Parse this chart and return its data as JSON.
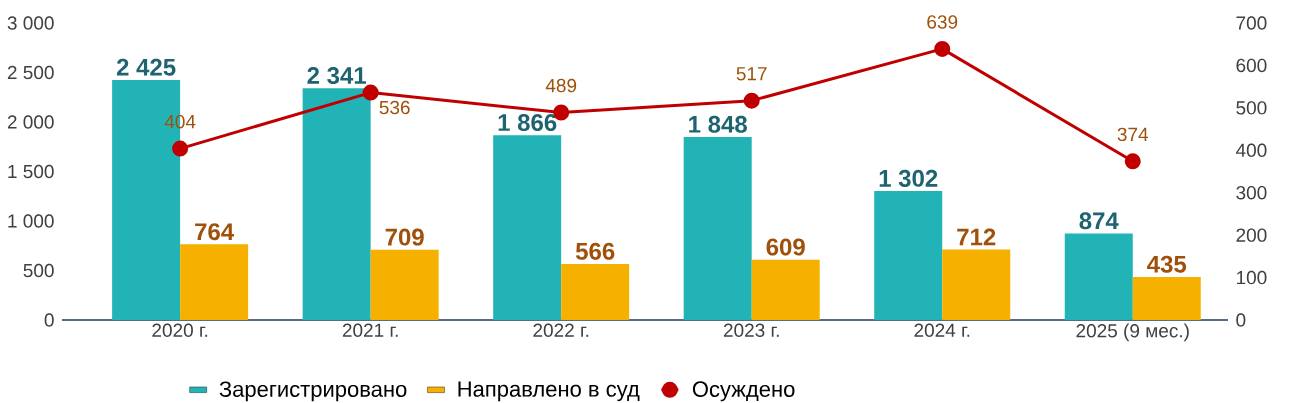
{
  "chart_data": {
    "type": "bar",
    "categories": [
      "2020 г.",
      "2021 г.",
      "2022 г.",
      "2023 г.",
      "2024 г.",
      "2025 (9 мес.)"
    ],
    "series": [
      {
        "name": "Зарегистрировано",
        "color": "#22b3b6",
        "values": [
          2425,
          2341,
          1866,
          1848,
          1302,
          874
        ],
        "value_labels": [
          "2 425",
          "2 341",
          "1 866",
          "1 848",
          "1 302",
          "874"
        ]
      },
      {
        "name": "Направлено в суд",
        "color": "#f6b000",
        "values": [
          764,
          709,
          566,
          609,
          712,
          435
        ],
        "value_labels": [
          "764",
          "709",
          "566",
          "609",
          "712",
          "435"
        ]
      },
      {
        "name": "Осуждено",
        "type": "line",
        "axis": "y2",
        "color": "#c00000",
        "marker": "circle",
        "line_style": "solid",
        "values": [
          404,
          536,
          489,
          517,
          639,
          374
        ],
        "value_labels": [
          "404",
          "536",
          "489",
          "517",
          "639",
          "374"
        ]
      }
    ],
    "ylim": [
      0,
      3000
    ],
    "yticks": [
      0,
      {
        "value": 500,
        "label": "500"
      },
      {
        "value": 1000,
        "label": "1 000"
      },
      {
        "value": 1500,
        "label": "1 500"
      },
      {
        "value": 2000,
        "label": "2 000"
      },
      {
        "value": 2500,
        "label": "2 500"
      },
      {
        "value": 3000,
        "label": "3 000"
      }
    ],
    "y2lim": [
      0,
      700
    ],
    "y2ticks": [
      0,
      100,
      200,
      300,
      400,
      500,
      600,
      700
    ],
    "legend": "bottom"
  }
}
